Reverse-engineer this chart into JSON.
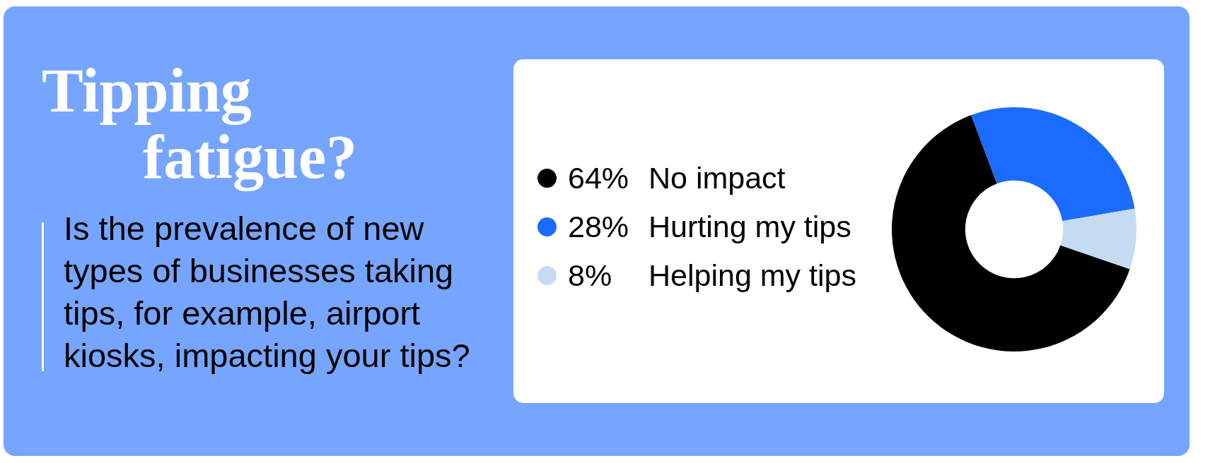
{
  "chart_data": {
    "type": "donut",
    "title": "Tipping fatigue?",
    "subtitle": "Is the prevalence of new types of businesses taking tips, for example, airport kiosks, impacting your tips?",
    "categories": [
      "No impact",
      "Hurting my tips",
      "Helping my tips"
    ],
    "values": [
      64,
      28,
      8
    ],
    "colors": [
      "#000000",
      "#1a6bff",
      "#c5dbf2"
    ],
    "value_labels": [
      "64%",
      "28%",
      "8%"
    ],
    "legend": "left"
  }
}
